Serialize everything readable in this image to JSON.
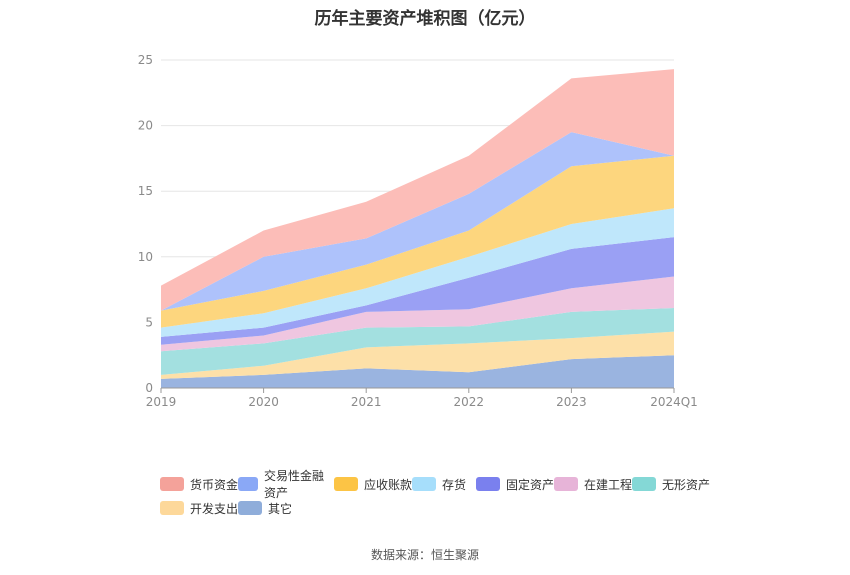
{
  "title": "历年主要资产堆积图（亿元）",
  "source": "数据来源：恒生聚源",
  "chart_data": {
    "type": "area",
    "stacked": true,
    "categories": [
      "2019",
      "2020",
      "2021",
      "2022",
      "2023",
      "2024Q1"
    ],
    "ylim": [
      0,
      25
    ],
    "yticks": [
      0,
      5,
      10,
      15,
      20,
      25
    ],
    "grid": true,
    "legend_position": "bottom",
    "series": [
      {
        "name": "其它",
        "color": "#9ab4e0",
        "values": [
          0.7,
          1.0,
          1.5,
          1.2,
          2.2,
          2.5
        ]
      },
      {
        "name": "开发支出",
        "color": "#fde0a8",
        "values": [
          0.3,
          0.7,
          1.6,
          2.2,
          1.6,
          1.8
        ]
      },
      {
        "name": "无形资产",
        "color": "#a3e0e0",
        "values": [
          1.8,
          1.7,
          1.5,
          1.3,
          2.0,
          1.8
        ]
      },
      {
        "name": "在建工程",
        "color": "#efc6e0",
        "values": [
          0.5,
          0.6,
          1.2,
          1.3,
          1.8,
          2.4
        ]
      },
      {
        "name": "固定资产",
        "color": "#9aa0f4",
        "values": [
          0.6,
          0.6,
          0.5,
          2.4,
          3.0,
          3.0
        ]
      },
      {
        "name": "存货",
        "color": "#bfe7fb",
        "values": [
          0.7,
          1.1,
          1.3,
          1.6,
          1.9,
          2.2
        ]
      },
      {
        "name": "应收账款",
        "color": "#fdd67e",
        "values": [
          1.3,
          1.7,
          1.8,
          2.0,
          4.4,
          4.0
        ]
      },
      {
        "name": "交易性金融资产",
        "color": "#aec2fb",
        "values": [
          0.0,
          2.6,
          2.0,
          2.8,
          2.6,
          0.0
        ]
      },
      {
        "name": "货币资金",
        "color": "#fcbdb8",
        "values": [
          1.9,
          2.0,
          2.8,
          2.9,
          4.1,
          6.6
        ]
      }
    ]
  },
  "legend": [
    {
      "name": "货币资金",
      "color": "#f4a29a"
    },
    {
      "name": "交易性金融资产",
      "color": "#8aa8f6"
    },
    {
      "name": "应收账款",
      "color": "#fcc445"
    },
    {
      "name": "存货",
      "color": "#a6defb"
    },
    {
      "name": "固定资产",
      "color": "#7a80ee"
    },
    {
      "name": "在建工程",
      "color": "#e7b4d8"
    },
    {
      "name": "无形资产",
      "color": "#84d8d6"
    },
    {
      "name": "开发支出",
      "color": "#fdd89a"
    },
    {
      "name": "其它",
      "color": "#8fadda"
    }
  ]
}
